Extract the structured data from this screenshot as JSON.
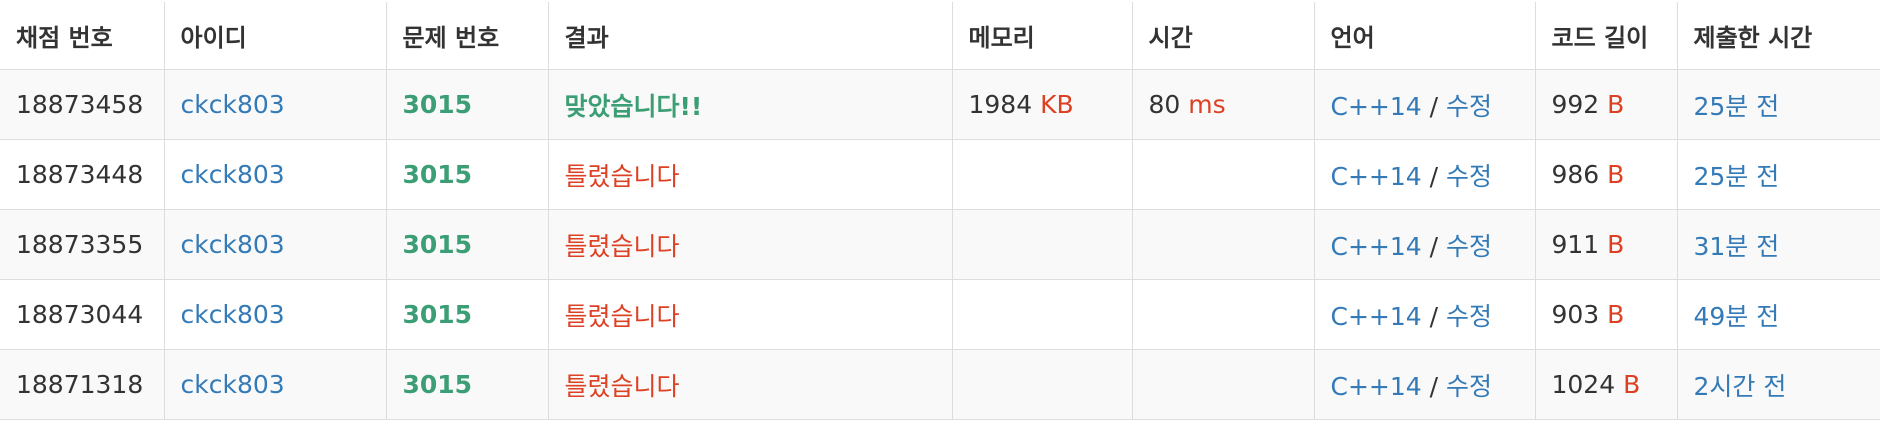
{
  "table": {
    "headers": [
      {
        "key": "submission_id",
        "label": "채점 번호"
      },
      {
        "key": "user_id",
        "label": "아이디"
      },
      {
        "key": "problem_id",
        "label": "문제 번호"
      },
      {
        "key": "result",
        "label": "결과"
      },
      {
        "key": "memory",
        "label": "메모리"
      },
      {
        "key": "time",
        "label": "시간"
      },
      {
        "key": "language",
        "label": "언어"
      },
      {
        "key": "code_length",
        "label": "코드 길이"
      },
      {
        "key": "submitted_at",
        "label": "제출한 시간"
      }
    ],
    "rows": [
      {
        "submission_id": "18873458",
        "user_id": "ckck803",
        "problem_id": "3015",
        "result": "맞았습니다!!",
        "result_status": "accepted",
        "memory_value": "1984",
        "memory_unit": "KB",
        "time_value": "80",
        "time_unit": "ms",
        "language": "C++14",
        "separator": "/",
        "edit_label": "수정",
        "code_length_value": "992",
        "code_length_unit": "B",
        "submitted_at": "25분 전"
      },
      {
        "submission_id": "18873448",
        "user_id": "ckck803",
        "problem_id": "3015",
        "result": "틀렸습니다",
        "result_status": "wrong",
        "memory_value": "",
        "memory_unit": "",
        "time_value": "",
        "time_unit": "",
        "language": "C++14",
        "separator": "/",
        "edit_label": "수정",
        "code_length_value": "986",
        "code_length_unit": "B",
        "submitted_at": "25분 전"
      },
      {
        "submission_id": "18873355",
        "user_id": "ckck803",
        "problem_id": "3015",
        "result": "틀렸습니다",
        "result_status": "wrong",
        "memory_value": "",
        "memory_unit": "",
        "time_value": "",
        "time_unit": "",
        "language": "C++14",
        "separator": "/",
        "edit_label": "수정",
        "code_length_value": "911",
        "code_length_unit": "B",
        "submitted_at": "31분 전"
      },
      {
        "submission_id": "18873044",
        "user_id": "ckck803",
        "problem_id": "3015",
        "result": "틀렸습니다",
        "result_status": "wrong",
        "memory_value": "",
        "memory_unit": "",
        "time_value": "",
        "time_unit": "",
        "language": "C++14",
        "separator": "/",
        "edit_label": "수정",
        "code_length_value": "903",
        "code_length_unit": "B",
        "submitted_at": "49분 전"
      },
      {
        "submission_id": "18871318",
        "user_id": "ckck803",
        "problem_id": "3015",
        "result": "틀렸습니다",
        "result_status": "wrong",
        "memory_value": "",
        "memory_unit": "",
        "time_value": "",
        "time_unit": "",
        "language": "C++14",
        "separator": "/",
        "edit_label": "수정",
        "code_length_value": "1024",
        "code_length_unit": "B",
        "submitted_at": "2시간 전"
      }
    ]
  },
  "colors": {
    "link": "#337ab7",
    "accepted": "#3c9e74",
    "wrong": "#dd4124",
    "unit": "#dd4124",
    "border": "#dddddd",
    "stripe": "#f9f9f9"
  }
}
